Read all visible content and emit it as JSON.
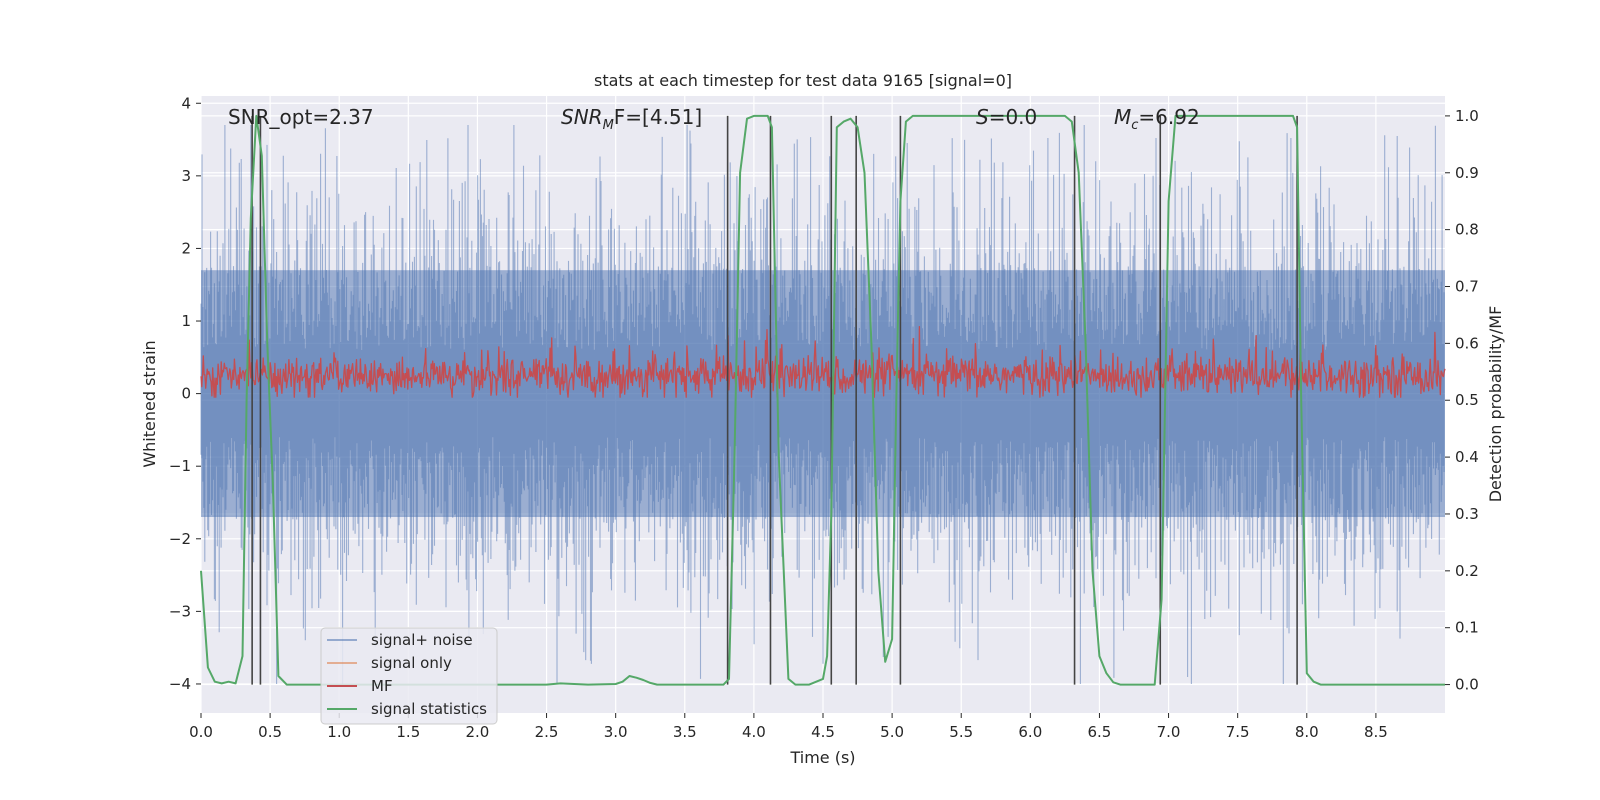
{
  "chart_data": {
    "type": "line",
    "title": "stats at each timestep for test data 9165 [signal=0]",
    "xlabel": "Time (s)",
    "ylabel_left": "Whitened strain",
    "ylabel_right": "Detection probability/MF",
    "xlim": [
      0.0,
      9.0
    ],
    "ylim_left": [
      -4.4,
      4.1
    ],
    "ylim_right": [
      -0.05,
      1.035
    ],
    "xticks": [
      "0.0",
      "0.5",
      "1.0",
      "1.5",
      "2.0",
      "2.5",
      "3.0",
      "3.5",
      "4.0",
      "4.5",
      "5.0",
      "5.5",
      "6.0",
      "6.5",
      "7.0",
      "7.5",
      "8.0",
      "8.5"
    ],
    "xtick_values": [
      0.0,
      0.5,
      1.0,
      1.5,
      2.0,
      2.5,
      3.0,
      3.5,
      4.0,
      4.5,
      5.0,
      5.5,
      6.0,
      6.5,
      7.0,
      7.5,
      8.0,
      8.5
    ],
    "yticks_left": [
      "−4",
      "−3",
      "−2",
      "−1",
      "0",
      "1",
      "2",
      "3",
      "4"
    ],
    "ytick_values_left": [
      -4,
      -3,
      -2,
      -1,
      0,
      1,
      2,
      3,
      4
    ],
    "yticks_right": [
      "0.0",
      "0.1",
      "0.2",
      "0.3",
      "0.4",
      "0.5",
      "0.6",
      "0.7",
      "0.8",
      "0.9",
      "1.0"
    ],
    "ytick_values_right": [
      0.0,
      0.1,
      0.2,
      0.3,
      0.4,
      0.5,
      0.6,
      0.7,
      0.8,
      0.9,
      1.0
    ],
    "grid": true,
    "legend_position": "lower-left",
    "annotations": {
      "snr_opt": "SNR_opt=2.37",
      "snr_mf_main": "SNR",
      "snr_mf_sub": "M",
      "snr_mf_rest": "F=[4.51]",
      "s_main": "S",
      "s_rest": "=0.0",
      "mc_main": "M",
      "mc_sub": "c",
      "mc_rest": "=6.92"
    },
    "series": [
      {
        "name": "signal+ noise",
        "color": "#4c72b0",
        "axis": "left",
        "band_approx": [
          -1.7,
          1.7
        ],
        "spike_max": 3.7,
        "spike_min": -4.0
      },
      {
        "name": "signal only",
        "color": "#dd8452",
        "axis": "left"
      },
      {
        "name": "MF",
        "color": "#c44e52",
        "axis": "left",
        "band_approx": [
          0.0,
          0.5
        ],
        "spike_max": 0.95
      },
      {
        "name": "signal statistics",
        "color": "#55a868",
        "axis": "right",
        "x": [
          0.0,
          0.05,
          0.1,
          0.15,
          0.2,
          0.25,
          0.3,
          0.33,
          0.36,
          0.4,
          0.44,
          0.48,
          0.52,
          0.56,
          0.62,
          0.7,
          1.0,
          1.5,
          2.0,
          2.5,
          2.6,
          2.8,
          3.0,
          3.05,
          3.1,
          3.15,
          3.2,
          3.25,
          3.3,
          3.4,
          3.6,
          3.78,
          3.82,
          3.86,
          3.9,
          3.95,
          4.0,
          4.1,
          4.13,
          4.18,
          4.25,
          4.3,
          4.4,
          4.5,
          4.53,
          4.56,
          4.6,
          4.65,
          4.7,
          4.75,
          4.8,
          4.85,
          4.9,
          4.95,
          5.0,
          5.03,
          5.06,
          5.1,
          5.15,
          5.2,
          6.0,
          6.25,
          6.3,
          6.35,
          6.4,
          6.45,
          6.5,
          6.55,
          6.6,
          6.65,
          6.7,
          6.9,
          6.95,
          7.0,
          7.05,
          7.5,
          7.9,
          7.93,
          7.96,
          8.0,
          8.05,
          8.1,
          8.5,
          9.0
        ],
        "values": [
          0.2,
          0.03,
          0.005,
          0.002,
          0.005,
          0.002,
          0.05,
          0.5,
          0.82,
          1.0,
          0.93,
          0.6,
          0.35,
          0.015,
          0.0,
          0.0,
          0.0,
          0.0,
          0.0,
          0.0,
          0.002,
          0.0,
          0.001,
          0.005,
          0.015,
          0.012,
          0.008,
          0.003,
          0.0,
          0.0,
          0.0,
          0.0,
          0.01,
          0.4,
          0.9,
          0.995,
          1.0,
          1.0,
          0.98,
          0.4,
          0.01,
          0.0,
          0.0,
          0.01,
          0.05,
          0.3,
          0.98,
          0.99,
          0.995,
          0.98,
          0.9,
          0.6,
          0.2,
          0.04,
          0.08,
          0.5,
          0.85,
          0.99,
          1.0,
          1.0,
          1.0,
          1.0,
          0.99,
          0.9,
          0.6,
          0.2,
          0.05,
          0.02,
          0.004,
          0.0,
          0.0,
          0.0,
          0.15,
          0.85,
          1.0,
          1.0,
          1.0,
          0.98,
          0.5,
          0.02,
          0.005,
          0.0,
          0.0,
          0.0
        ]
      },
      {
        "name": "detection markers (vertical lines)",
        "color": "#444444",
        "axis": "left",
        "x": [
          0.37,
          0.43,
          3.81,
          4.12,
          4.56,
          4.74,
          5.06,
          6.32,
          6.94,
          7.93
        ]
      }
    ]
  }
}
